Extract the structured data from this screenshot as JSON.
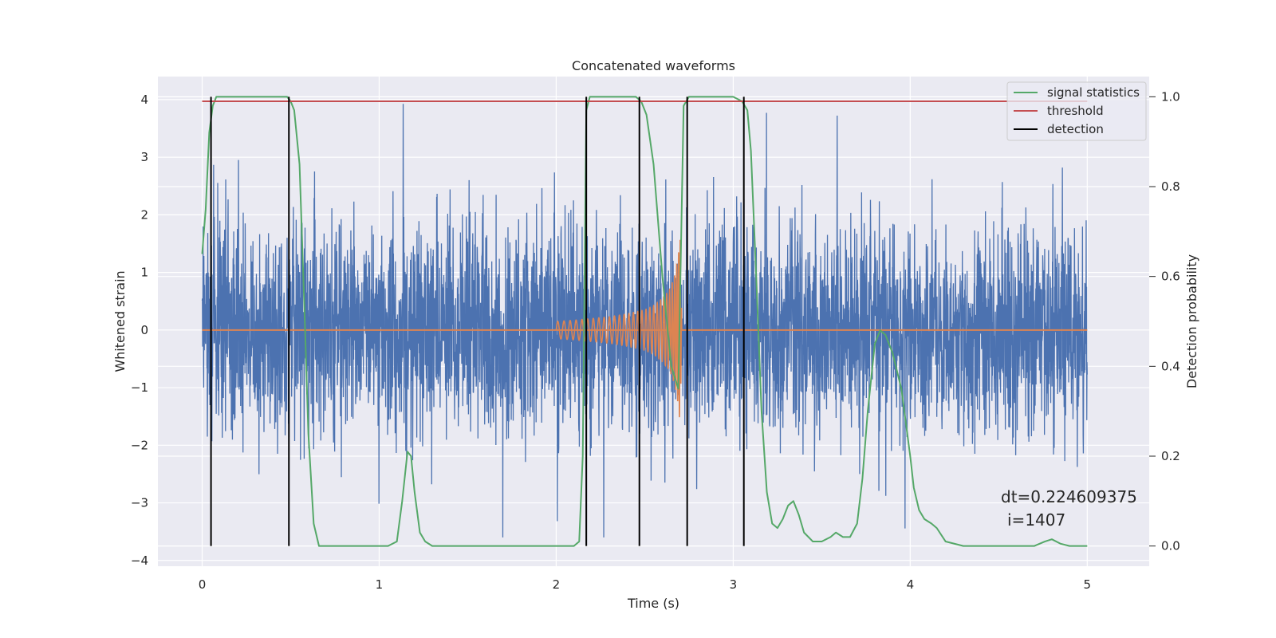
{
  "chart_data": {
    "type": "line",
    "title": "Concatenated waveforms",
    "xlabel": "Time (s)",
    "ylabel": "Whitened strain",
    "y2label": "Detection probability",
    "xlim": [
      -0.25,
      5.35
    ],
    "ylim": [
      -4.1,
      4.4
    ],
    "y2lim": [
      -0.045,
      1.045
    ],
    "xticks": [
      0,
      1,
      2,
      3,
      4,
      5
    ],
    "yticks": [
      -4,
      -3,
      -2,
      -1,
      0,
      1,
      2,
      3,
      4
    ],
    "y2ticks": [
      0.0,
      0.2,
      0.4,
      0.6,
      0.8,
      1.0
    ],
    "grid": true,
    "legend_position": "top-right",
    "colors": {
      "background": "#eaeaf2",
      "noise": "#4c72b0",
      "waveform": "#dd8452",
      "signal_statistics": "#55a868",
      "threshold": "#c44e52",
      "detection": "#000000"
    },
    "series": [
      {
        "name": "signal statistics",
        "axis": "right",
        "x": [
          0.0,
          0.02,
          0.04,
          0.06,
          0.08,
          0.12,
          0.2,
          0.3,
          0.4,
          0.48,
          0.5,
          0.52,
          0.55,
          0.58,
          0.6,
          0.63,
          0.66,
          0.7,
          0.8,
          0.9,
          1.0,
          1.05,
          1.1,
          1.13,
          1.16,
          1.18,
          1.2,
          1.23,
          1.26,
          1.3,
          1.4,
          1.6,
          1.8,
          2.0,
          2.1,
          2.13,
          2.15,
          2.17,
          2.19,
          2.22,
          2.3,
          2.4,
          2.45,
          2.48,
          2.51,
          2.55,
          2.6,
          2.65,
          2.69,
          2.72,
          2.75,
          2.8,
          2.9,
          3.0,
          3.05,
          3.08,
          3.1,
          3.13,
          3.16,
          3.19,
          3.22,
          3.25,
          3.28,
          3.31,
          3.34,
          3.37,
          3.4,
          3.45,
          3.5,
          3.55,
          3.58,
          3.62,
          3.66,
          3.7,
          3.73,
          3.76,
          3.8,
          3.83,
          3.86,
          3.9,
          3.95,
          4.0,
          4.02,
          4.05,
          4.08,
          4.12,
          4.15,
          4.2,
          4.3,
          4.5,
          4.7,
          4.76,
          4.8,
          4.85,
          4.9,
          5.0
        ],
        "y": [
          0.65,
          0.75,
          0.92,
          0.98,
          1.0,
          1.0,
          1.0,
          1.0,
          1.0,
          1.0,
          0.99,
          0.97,
          0.85,
          0.5,
          0.25,
          0.05,
          0.0,
          0.0,
          0.0,
          0.0,
          0.0,
          0.0,
          0.01,
          0.1,
          0.21,
          0.2,
          0.12,
          0.03,
          0.01,
          0.0,
          0.0,
          0.0,
          0.0,
          0.0,
          0.0,
          0.01,
          0.2,
          0.97,
          1.0,
          1.0,
          1.0,
          1.0,
          1.0,
          0.99,
          0.96,
          0.85,
          0.6,
          0.4,
          0.35,
          0.98,
          1.0,
          1.0,
          1.0,
          1.0,
          0.99,
          0.97,
          0.88,
          0.6,
          0.3,
          0.12,
          0.05,
          0.04,
          0.06,
          0.09,
          0.1,
          0.07,
          0.03,
          0.01,
          0.01,
          0.02,
          0.03,
          0.02,
          0.02,
          0.05,
          0.15,
          0.3,
          0.45,
          0.48,
          0.47,
          0.43,
          0.35,
          0.2,
          0.13,
          0.08,
          0.06,
          0.05,
          0.04,
          0.01,
          0.0,
          0.0,
          0.0,
          0.01,
          0.015,
          0.005,
          0.0,
          0.0
        ]
      },
      {
        "name": "threshold",
        "axis": "right",
        "x": [
          0.0,
          5.0
        ],
        "y": [
          0.99,
          0.99
        ]
      },
      {
        "name": "detection",
        "axis": "right",
        "type": "vlines",
        "x": [
          0.05,
          0.49,
          2.17,
          2.47,
          2.74,
          3.06
        ],
        "ymin": 0.0,
        "ymax": 1.0
      }
    ],
    "unlabeled_series": [
      {
        "role": "whitened noise",
        "axis": "left",
        "x_range": [
          0.0,
          5.0
        ],
        "samples": 4096,
        "typical_range": [
          -1.5,
          1.5
        ],
        "peak_range": [
          -3.6,
          4.05
        ]
      },
      {
        "role": "injected waveform",
        "axis": "left",
        "x": [
          2.0,
          2.1,
          2.2,
          2.3,
          2.4,
          2.5,
          2.55,
          2.6,
          2.64,
          2.67,
          2.69,
          2.7,
          2.71
        ],
        "amplitude": [
          0.15,
          0.17,
          0.2,
          0.23,
          0.28,
          0.35,
          0.42,
          0.55,
          0.7,
          0.95,
          1.3,
          1.65,
          0.0
        ]
      }
    ],
    "annotation": {
      "text1": "dt=0.224609375",
      "text2": "i=1407",
      "x": 4.5,
      "y": -3.0
    }
  },
  "legend": {
    "items": [
      "signal statistics",
      "threshold",
      "detection"
    ]
  },
  "tick_labels": {
    "x": [
      "0",
      "1",
      "2",
      "3",
      "4",
      "5"
    ],
    "y": [
      "−4",
      "−3",
      "−2",
      "−1",
      "0",
      "1",
      "2",
      "3",
      "4"
    ],
    "y2": [
      "0.0",
      "0.2",
      "0.4",
      "0.6",
      "0.8",
      "1.0"
    ]
  }
}
